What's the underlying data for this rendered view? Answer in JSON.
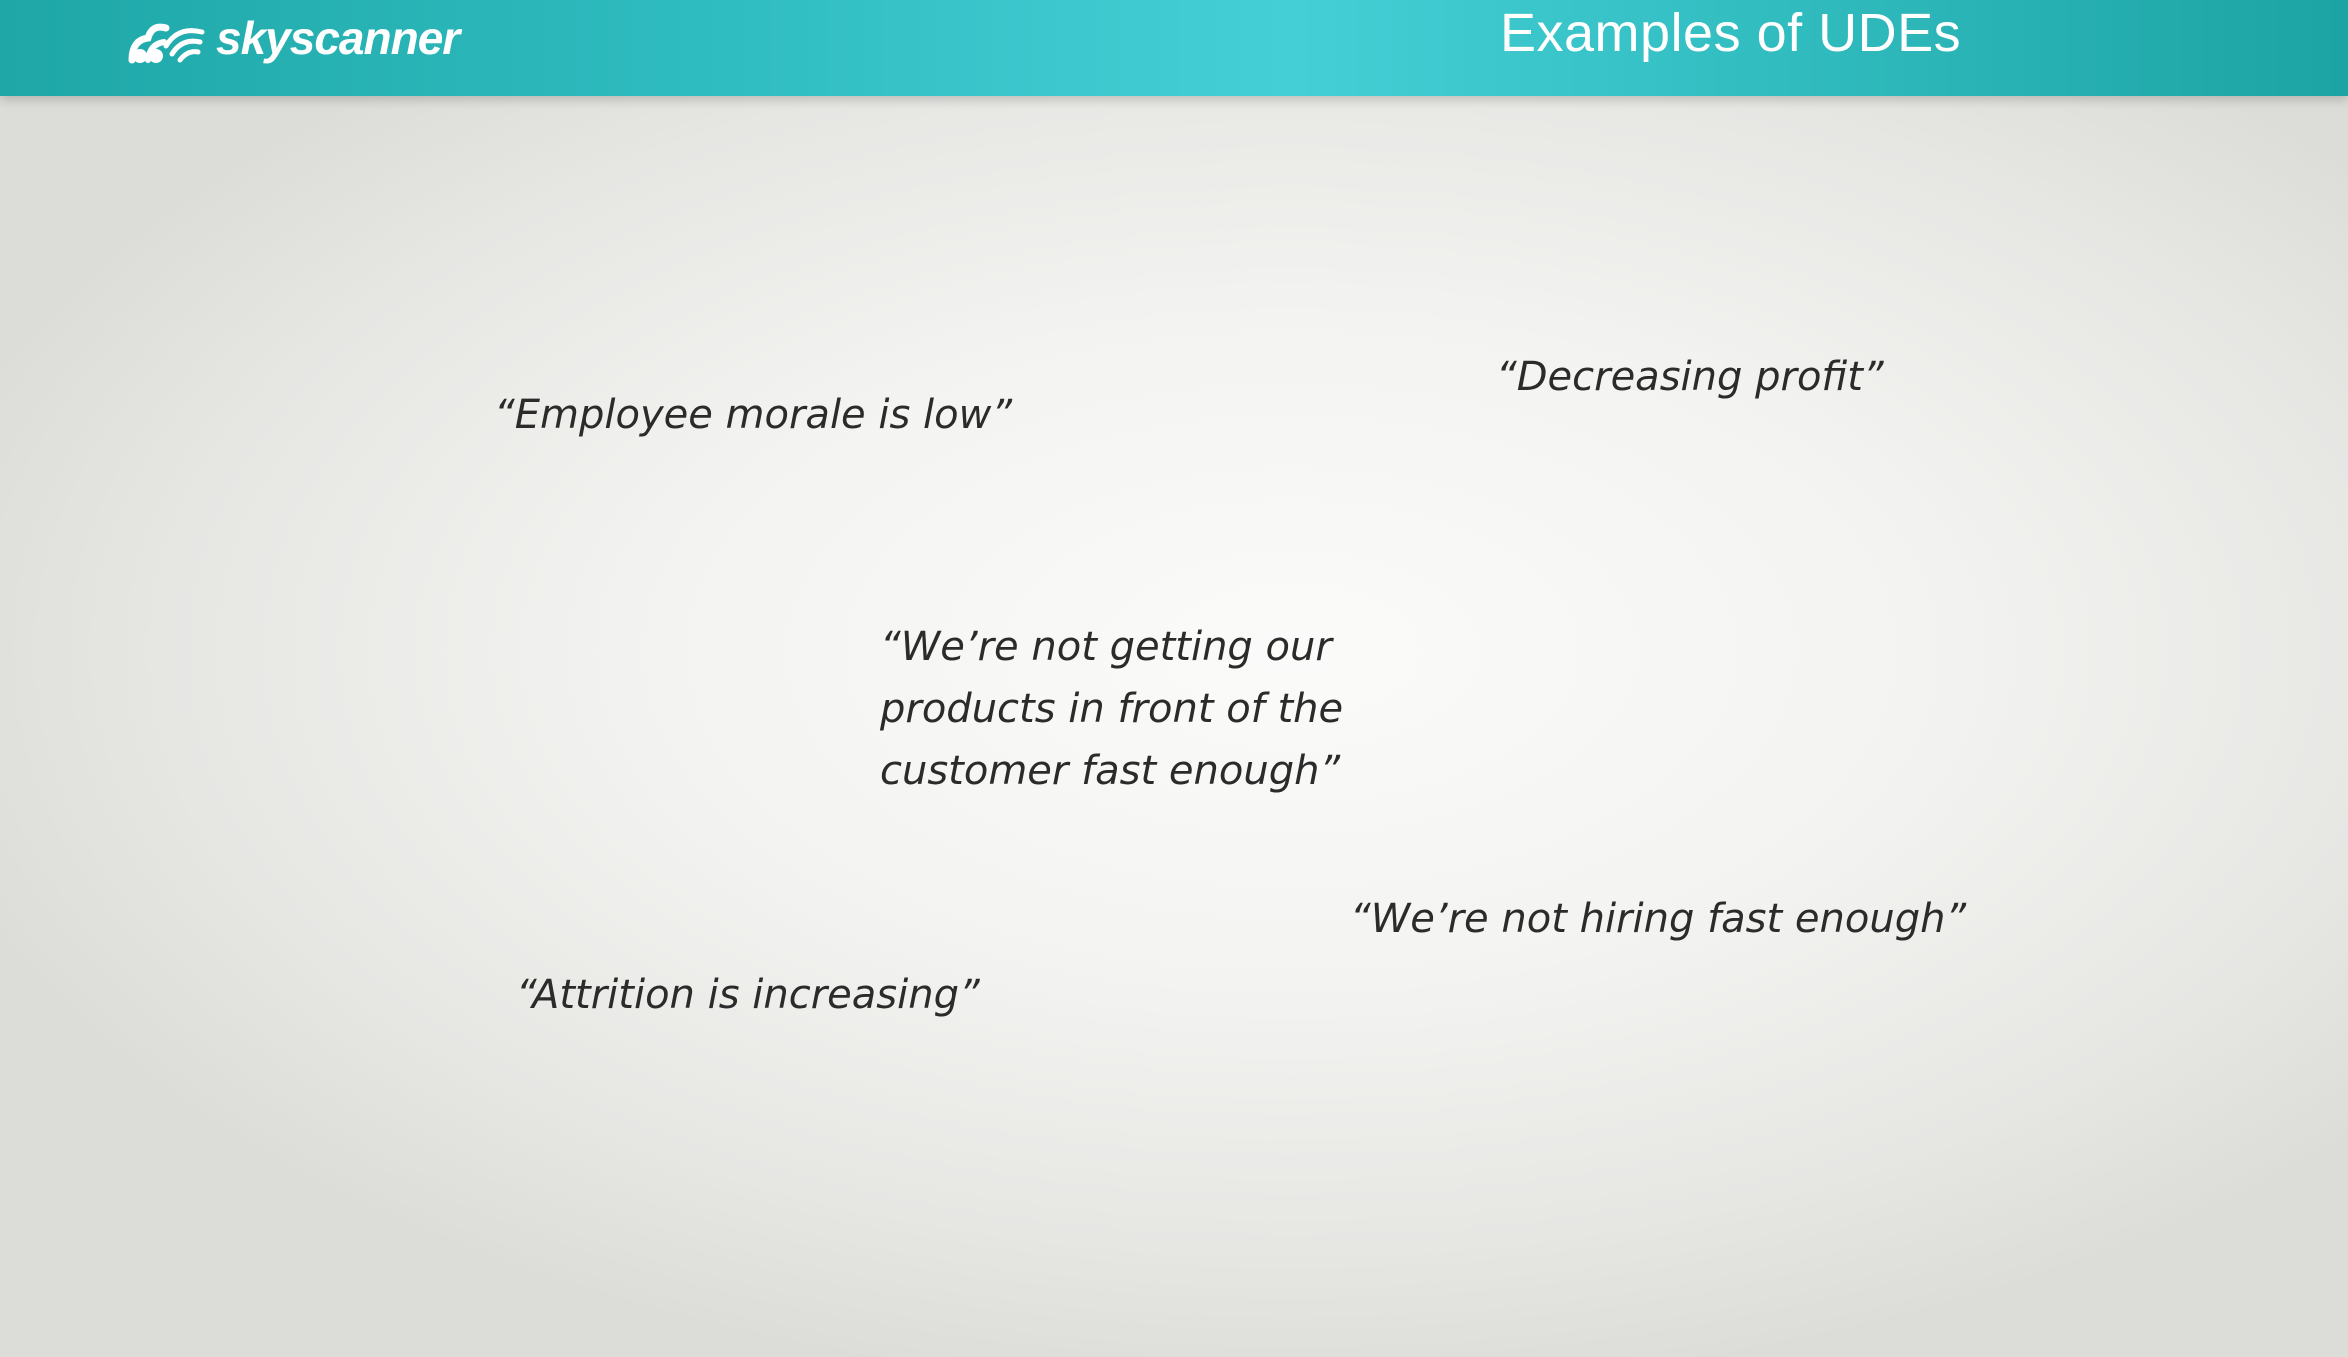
{
  "header": {
    "logo_text": "skyscanner",
    "title": "Examples of UDEs",
    "colors": {
      "header_start": "#1fa7a7",
      "header_mid": "#44cfd6",
      "header_end": "#1ca3a3",
      "text": "#ffffff"
    }
  },
  "quotes": [
    "“Employee morale is low”",
    "“Decreasing profit”",
    "“We’re not getting our\nproducts in front of the\ncustomer fast enough”",
    "“We’re not hiring fast enough”",
    "“Attrition is increasing”"
  ],
  "icons": {
    "logo": "skyscanner-logo-icon"
  }
}
